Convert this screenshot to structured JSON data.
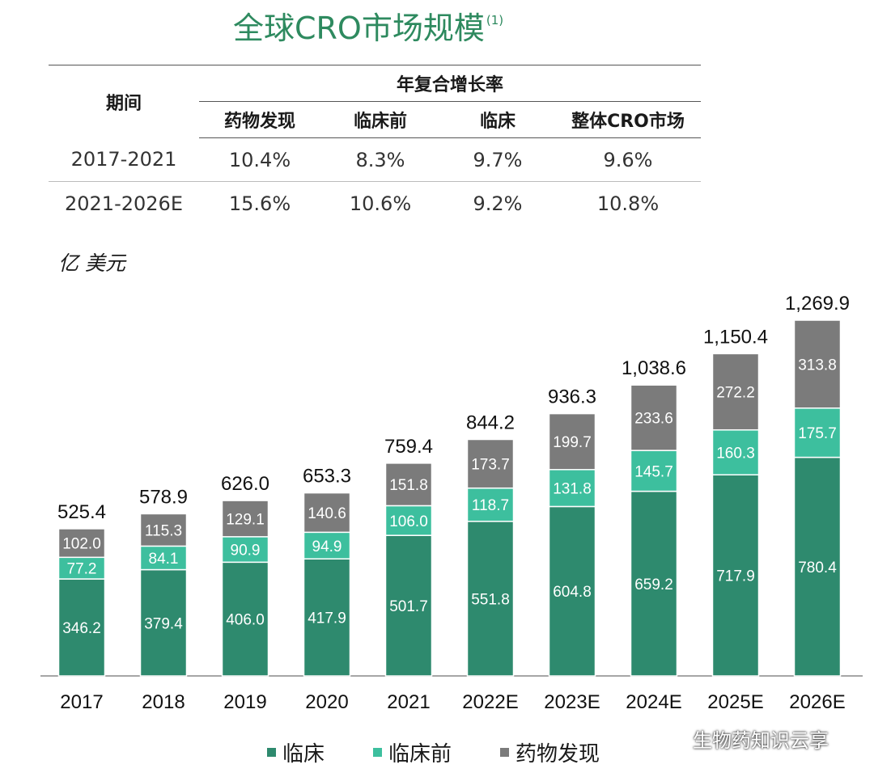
{
  "title": "全球CRO市场规模",
  "title_note": "(1)",
  "table": {
    "period_header": "期间",
    "group_header": "年复合增长率",
    "columns": [
      "药物发现",
      "临床前",
      "临床",
      "整体CRO市场"
    ],
    "rows": [
      {
        "period": "2017-2021",
        "values": [
          "10.4%",
          "8.3%",
          "9.7%",
          "9.6%"
        ]
      },
      {
        "period": "2021-2026E",
        "values": [
          "15.6%",
          "10.6%",
          "9.2%",
          "10.8%"
        ]
      }
    ]
  },
  "unit_label": "亿 美元",
  "legend": {
    "clinical": "临床",
    "preclinical": "临床前",
    "discovery": "药物发现"
  },
  "watermark": "生物药知识云享",
  "colors": {
    "title": "#2e8a5f",
    "clinical": "#2e8a6e",
    "preclinical": "#3dbf9e",
    "discovery": "#7b7b7b"
  },
  "chart_data": {
    "type": "bar",
    "stacked": true,
    "categories": [
      "2017",
      "2018",
      "2019",
      "2020",
      "2021",
      "2022E",
      "2023E",
      "2024E",
      "2025E",
      "2026E"
    ],
    "series": [
      {
        "name": "临床",
        "values": [
          346.2,
          379.4,
          406.0,
          417.9,
          501.7,
          551.8,
          604.8,
          659.2,
          717.9,
          780.4
        ]
      },
      {
        "name": "临床前",
        "values": [
          77.2,
          84.1,
          90.9,
          94.9,
          106.0,
          118.7,
          131.8,
          145.7,
          160.3,
          175.7
        ]
      },
      {
        "name": "药物发现",
        "values": [
          102.0,
          115.3,
          129.1,
          140.6,
          151.8,
          173.7,
          199.7,
          233.6,
          272.2,
          313.8
        ]
      }
    ],
    "segment_labels": [
      [
        "346.2",
        "379.4",
        "406.0",
        "417.9",
        "501.7",
        "551.8",
        "604.8",
        "659.2",
        "717.9",
        "780.4"
      ],
      [
        "77.2",
        "84.1",
        "90.9",
        "94.9",
        "106.0",
        "118.7",
        "131.8",
        "145.7",
        "160.3",
        "175.7"
      ],
      [
        "102.0",
        "115.3",
        "129.1",
        "140.6",
        "151.8",
        "173.7",
        "199.7",
        "233.6",
        "272.2",
        "313.8"
      ]
    ],
    "totals": [
      525.4,
      578.9,
      626.0,
      653.3,
      759.4,
      844.2,
      936.3,
      1038.6,
      1150.4,
      1269.9
    ],
    "total_labels": [
      "525.4",
      "578.9",
      "626.0",
      "653.3",
      "759.4",
      "844.2",
      "936.3",
      "1,038.6",
      "1,150.4",
      "1,269.9"
    ],
    "title": "全球CRO市场规模",
    "ylabel": "亿 美元",
    "xlabel": "",
    "ylim": [
      0,
      1269.9
    ],
    "grid": false,
    "legend_position": "bottom"
  }
}
